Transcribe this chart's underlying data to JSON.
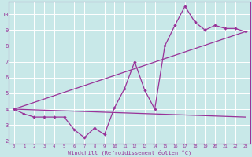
{
  "background_color": "#c8e8e8",
  "grid_color": "#ffffff",
  "line_color": "#993399",
  "xlabel": "Windchill (Refroidissement éolien,°C)",
  "xlim": [
    -0.5,
    23.5
  ],
  "ylim": [
    1.8,
    10.8
  ],
  "xticks": [
    0,
    1,
    2,
    3,
    4,
    5,
    6,
    7,
    8,
    9,
    10,
    11,
    12,
    13,
    14,
    15,
    16,
    17,
    18,
    19,
    20,
    21,
    22,
    23
  ],
  "yticks": [
    2,
    3,
    4,
    5,
    6,
    7,
    8,
    9,
    10
  ],
  "line1_x": [
    0,
    23
  ],
  "line1_y": [
    4.0,
    3.5
  ],
  "line2_x": [
    0,
    1,
    2,
    3,
    4,
    5,
    6,
    7,
    8,
    9,
    10,
    11,
    12,
    13,
    14,
    15,
    16,
    17,
    18,
    19,
    20,
    21,
    22,
    23
  ],
  "line2_y": [
    4.0,
    3.7,
    3.5,
    3.5,
    3.5,
    3.5,
    2.7,
    2.2,
    2.8,
    2.4,
    4.1,
    5.3,
    7.0,
    5.2,
    4.0,
    8.0,
    9.3,
    10.5,
    9.5,
    9.0,
    9.3,
    9.1,
    9.1,
    8.9
  ],
  "line3_x": [
    0,
    23
  ],
  "line3_y": [
    4.0,
    8.9
  ]
}
